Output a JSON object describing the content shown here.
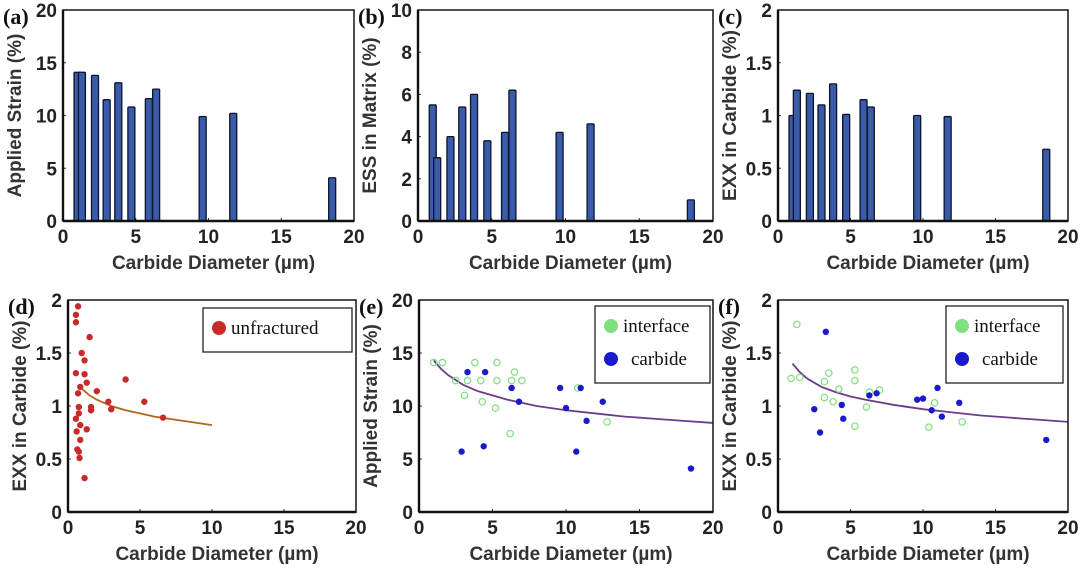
{
  "chart_data": [
    {
      "id": "a",
      "panel_label": "(a)",
      "type": "bar",
      "xlabel": "Carbide Diameter (µm)",
      "ylabel": "Applied Strain (%)",
      "xlim": [
        0,
        20
      ],
      "ylim": [
        0,
        20
      ],
      "xticks": [
        "0",
        "5",
        "10",
        "15",
        "20"
      ],
      "yticks": [
        "0",
        "5",
        "10",
        "15",
        "20"
      ],
      "bar_color": "#3a5ba8",
      "x": [
        1.0,
        1.3,
        2.2,
        3.0,
        3.8,
        4.7,
        5.9,
        6.4,
        9.6,
        11.7,
        18.5
      ],
      "values": [
        14.1,
        14.1,
        13.8,
        11.5,
        13.1,
        10.8,
        11.6,
        12.5,
        9.9,
        10.2,
        4.1
      ]
    },
    {
      "id": "b",
      "panel_label": "(b)",
      "type": "bar",
      "xlabel": "Carbide Diameter (µm)",
      "ylabel": "ESS in Matrix (%)",
      "xlim": [
        0,
        20
      ],
      "ylim": [
        0,
        10
      ],
      "xticks": [
        "0",
        "5",
        "10",
        "15",
        "20"
      ],
      "yticks": [
        "0",
        "2",
        "4",
        "6",
        "8",
        "10"
      ],
      "bar_color": "#3a5ba8",
      "x": [
        1.0,
        1.3,
        2.2,
        3.0,
        3.8,
        4.7,
        5.9,
        6.4,
        9.6,
        11.7,
        18.5
      ],
      "values": [
        5.5,
        3.0,
        4.0,
        5.4,
        6.0,
        3.8,
        4.2,
        6.2,
        4.2,
        4.6,
        1.0
      ]
    },
    {
      "id": "c",
      "panel_label": "(c)",
      "type": "bar",
      "xlabel": "Carbide Diameter (µm)",
      "ylabel": "EXX in Carbide (%)",
      "xlim": [
        0,
        20
      ],
      "ylim": [
        0,
        2
      ],
      "xticks": [
        "0",
        "5",
        "10",
        "15",
        "20"
      ],
      "yticks": [
        "0",
        "0.5",
        "1",
        "1.5",
        "2"
      ],
      "bar_color": "#3a5ba8",
      "x": [
        1.0,
        1.3,
        2.2,
        3.0,
        3.8,
        4.7,
        5.9,
        6.4,
        9.6,
        11.7,
        18.5
      ],
      "values": [
        1.0,
        1.24,
        1.21,
        1.1,
        1.3,
        1.01,
        1.15,
        1.08,
        1.0,
        0.99,
        0.68
      ]
    },
    {
      "id": "d",
      "panel_label": "(d)",
      "type": "scatter",
      "xlabel": "Carbide Diameter (µm)",
      "ylabel": "EXX in Carbide (%)",
      "xlim": [
        0,
        20
      ],
      "ylim": [
        0,
        2
      ],
      "xticks": [
        "0",
        "5",
        "10",
        "15",
        "20"
      ],
      "yticks": [
        "0",
        "0.5",
        "1",
        "1.5",
        "2"
      ],
      "legend_position": "top-right",
      "series": [
        {
          "name": "unfractured",
          "color": "#c82a2a",
          "style": "filled",
          "points": [
            [
              0.7,
              1.94
            ],
            [
              0.55,
              1.86
            ],
            [
              0.55,
              1.79
            ],
            [
              1.5,
              1.65
            ],
            [
              0.95,
              1.5
            ],
            [
              1.15,
              1.43
            ],
            [
              0.55,
              1.31
            ],
            [
              1.15,
              1.3
            ],
            [
              1.3,
              1.22
            ],
            [
              0.85,
              1.18
            ],
            [
              0.7,
              1.12
            ],
            [
              2.0,
              1.14
            ],
            [
              4.0,
              1.25
            ],
            [
              0.75,
              0.99
            ],
            [
              1.6,
              0.99
            ],
            [
              1.6,
              0.96
            ],
            [
              2.8,
              1.04
            ],
            [
              3.0,
              0.97
            ],
            [
              5.3,
              1.04
            ],
            [
              0.75,
              0.93
            ],
            [
              0.55,
              0.88
            ],
            [
              6.6,
              0.89
            ],
            [
              0.85,
              0.82
            ],
            [
              1.3,
              0.78
            ],
            [
              0.6,
              0.76
            ],
            [
              0.85,
              0.68
            ],
            [
              0.65,
              0.59
            ],
            [
              0.75,
              0.57
            ],
            [
              0.8,
              0.51
            ],
            [
              1.15,
              0.32
            ]
          ]
        }
      ],
      "fit_line": {
        "color": "#b5651d",
        "x": [
          0.9,
          1.5,
          2,
          3,
          4,
          5,
          6,
          7,
          8,
          9,
          10
        ],
        "y": [
          1.17,
          1.1,
          1.06,
          1.0,
          0.96,
          0.93,
          0.9,
          0.88,
          0.86,
          0.84,
          0.82
        ]
      }
    },
    {
      "id": "e",
      "panel_label": "(e)",
      "type": "scatter",
      "xlabel": "Carbide Diameter (µm)",
      "ylabel": "Applied Strain (%)",
      "xlim": [
        0,
        20
      ],
      "ylim": [
        0,
        20
      ],
      "xticks": [
        "0",
        "5",
        "10",
        "15",
        "20"
      ],
      "yticks": [
        "0",
        "5",
        "10",
        "15",
        "20"
      ],
      "legend_position": "top-right",
      "series": [
        {
          "name": "interface",
          "color": "#7fe07f",
          "style": "open",
          "points": [
            [
              1.0,
              14.1
            ],
            [
              1.6,
              14.1
            ],
            [
              3.8,
              14.1
            ],
            [
              5.3,
              14.1
            ],
            [
              6.5,
              13.2
            ],
            [
              2.5,
              12.4
            ],
            [
              3.3,
              12.4
            ],
            [
              4.2,
              12.4
            ],
            [
              5.3,
              12.4
            ],
            [
              6.3,
              12.4
            ],
            [
              7.0,
              12.4
            ],
            [
              3.1,
              11.0
            ],
            [
              4.3,
              10.4
            ],
            [
              5.2,
              9.8
            ],
            [
              6.2,
              7.4
            ],
            [
              12.8,
              8.5
            ],
            [
              10.8,
              11.7
            ]
          ]
        },
        {
          "name": "carbide",
          "color": "#1a1acc",
          "style": "filled",
          "points": [
            [
              3.3,
              13.2
            ],
            [
              4.5,
              13.2
            ],
            [
              6.3,
              11.7
            ],
            [
              9.6,
              11.7
            ],
            [
              11.0,
              11.7
            ],
            [
              6.8,
              10.4
            ],
            [
              12.5,
              10.4
            ],
            [
              10.0,
              9.8
            ],
            [
              11.4,
              8.6
            ],
            [
              2.9,
              5.7
            ],
            [
              4.4,
              6.2
            ],
            [
              10.7,
              5.7
            ],
            [
              18.5,
              4.1
            ]
          ]
        }
      ],
      "fit_line": {
        "color": "#6a3c8c",
        "x": [
          1,
          1.5,
          2,
          3,
          4,
          5,
          6,
          8,
          10,
          12,
          14,
          16,
          18,
          20
        ],
        "y": [
          14.3,
          13.5,
          12.9,
          12.0,
          11.4,
          11.0,
          10.6,
          10.0,
          9.6,
          9.3,
          9.0,
          8.8,
          8.6,
          8.4
        ]
      }
    },
    {
      "id": "f",
      "panel_label": "(f)",
      "type": "scatter",
      "xlabel": "Carbide Diameter (µm)",
      "ylabel": "EXX in Carbide (%)",
      "xlim": [
        0,
        20
      ],
      "ylim": [
        0,
        2
      ],
      "xticks": [
        "0",
        "5",
        "10",
        "15",
        "20"
      ],
      "yticks": [
        "0",
        "0.5",
        "1",
        "1.5",
        "2"
      ],
      "legend_position": "top-right",
      "series": [
        {
          "name": "interface",
          "color": "#7fe07f",
          "style": "open",
          "points": [
            [
              1.3,
              1.77
            ],
            [
              0.9,
              1.26
            ],
            [
              1.5,
              1.27
            ],
            [
              3.5,
              1.31
            ],
            [
              5.3,
              1.34
            ],
            [
              5.3,
              1.24
            ],
            [
              3.2,
              1.23
            ],
            [
              4.2,
              1.16
            ],
            [
              7.0,
              1.15
            ],
            [
              6.3,
              1.13
            ],
            [
              3.2,
              1.08
            ],
            [
              3.8,
              1.04
            ],
            [
              6.1,
              0.99
            ],
            [
              5.3,
              0.81
            ],
            [
              10.4,
              0.8
            ],
            [
              10.8,
              1.03
            ],
            [
              12.7,
              0.85
            ]
          ]
        },
        {
          "name": "carbide",
          "color": "#1a1acc",
          "style": "filled",
          "points": [
            [
              3.3,
              1.7
            ],
            [
              2.5,
              0.97
            ],
            [
              4.4,
              1.01
            ],
            [
              4.5,
              0.88
            ],
            [
              2.9,
              0.75
            ],
            [
              6.3,
              1.1
            ],
            [
              6.8,
              1.12
            ],
            [
              9.6,
              1.06
            ],
            [
              10.0,
              1.07
            ],
            [
              11.0,
              1.17
            ],
            [
              10.6,
              0.96
            ],
            [
              11.3,
              0.9
            ],
            [
              12.5,
              1.03
            ],
            [
              18.5,
              0.68
            ]
          ]
        }
      ],
      "fit_line": {
        "color": "#6a3c8c",
        "x": [
          1,
          1.5,
          2,
          3,
          4,
          5,
          6,
          8,
          10,
          12,
          14,
          16,
          18,
          20
        ],
        "y": [
          1.4,
          1.32,
          1.26,
          1.18,
          1.13,
          1.09,
          1.06,
          1.01,
          0.97,
          0.94,
          0.91,
          0.89,
          0.87,
          0.85
        ]
      }
    }
  ]
}
